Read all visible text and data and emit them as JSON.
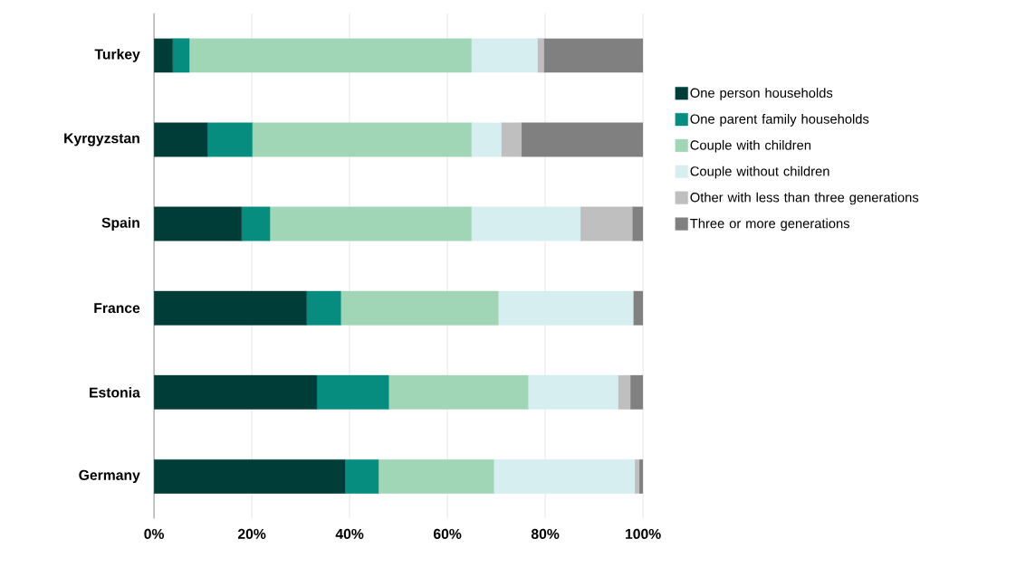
{
  "chart_data": {
    "type": "bar",
    "orientation": "horizontal",
    "stacked": true,
    "legend": "right",
    "grid": "x",
    "categories": [
      "Turkey",
      "Kyrgyzstan",
      "Spain",
      "France",
      "Estonia",
      "Germany"
    ],
    "xlim": [
      0,
      100
    ],
    "xticks": [
      {
        "value": 0,
        "label": "0%"
      },
      {
        "value": 20,
        "label": "20%"
      },
      {
        "value": 40,
        "label": "40%"
      },
      {
        "value": 60,
        "label": "60%"
      },
      {
        "value": 80,
        "label": "80%"
      },
      {
        "value": 100,
        "label": "100%"
      }
    ],
    "series": [
      {
        "name": "One person households",
        "color": "#003d38",
        "values": [
          3.8,
          10.9,
          17.9,
          31.2,
          33.3,
          39.1
        ]
      },
      {
        "name": "One parent family households",
        "color": "#068d80",
        "values": [
          3.4,
          9.2,
          5.8,
          7.0,
          14.7,
          6.8
        ]
      },
      {
        "name": "Couple with children",
        "color": "#a0d6b6",
        "values": [
          57.7,
          44.8,
          41.2,
          32.2,
          28.5,
          23.6
        ]
      },
      {
        "name": "Couple without children",
        "color": "#d6eef0",
        "values": [
          13.5,
          6.1,
          22.3,
          27.6,
          18.4,
          28.8
        ]
      },
      {
        "name": "Other with less than three generations",
        "color": "#bfbfbf",
        "values": [
          1.3,
          4.1,
          10.6,
          0,
          2.5,
          0.9
        ]
      },
      {
        "name": "Three or more generations",
        "color": "#808080",
        "values": [
          20.3,
          24.9,
          2.2,
          2.0,
          2.6,
          0.8
        ]
      }
    ]
  }
}
